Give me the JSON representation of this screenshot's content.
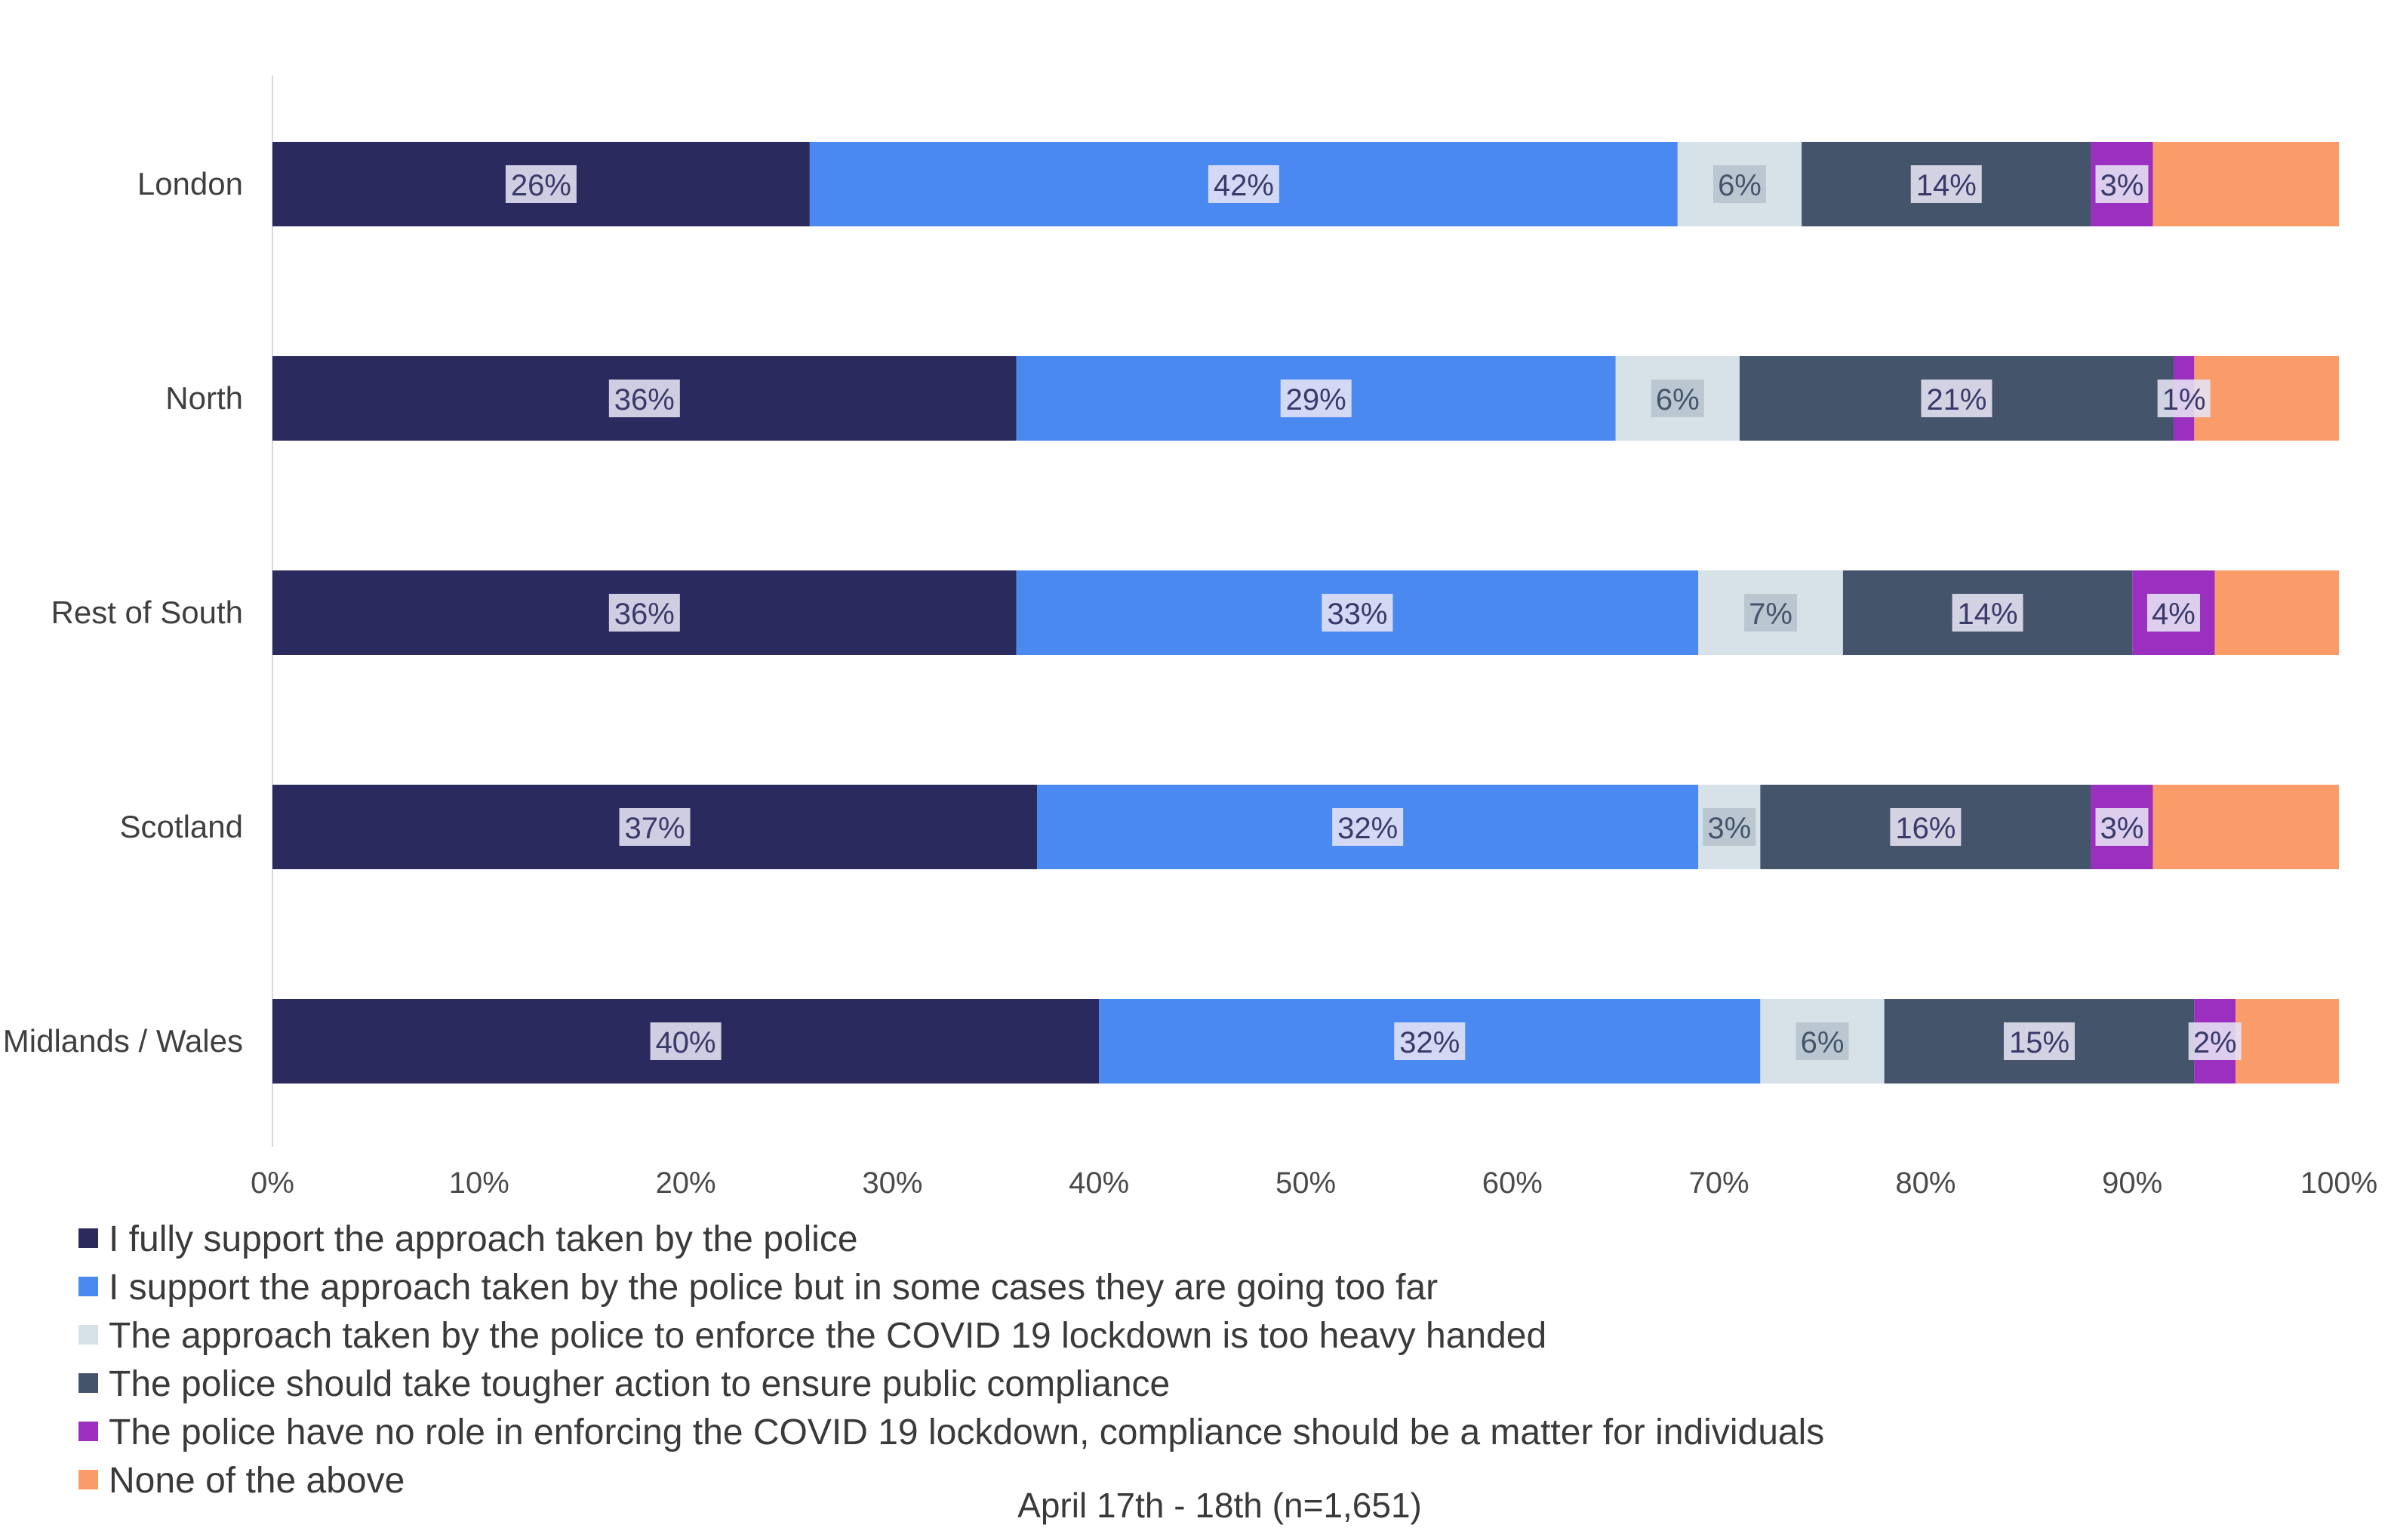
{
  "chart_data": {
    "type": "bar",
    "orientation": "horizontal",
    "stacked": true,
    "categories": [
      "London",
      "North",
      "Rest of South",
      "Scotland",
      "Midlands / Wales"
    ],
    "series": [
      {
        "name": "I fully support the approach taken by the police",
        "color": "#2b2a5e",
        "values": [
          26,
          36,
          36,
          37,
          40
        ],
        "labels": [
          "26%",
          "36%",
          "36%",
          "37%",
          "40%"
        ]
      },
      {
        "name": "I support the approach taken by the police but in some cases they are going too far",
        "color": "#4a8af0",
        "values": [
          42,
          29,
          33,
          32,
          32
        ],
        "labels": [
          "42%",
          "29%",
          "33%",
          "32%",
          "32%"
        ]
      },
      {
        "name": "The approach taken by the police to enforce the COVID 19 lockdown is too heavy handed",
        "color": "#d6e1e8",
        "values": [
          6,
          6,
          7,
          3,
          6
        ],
        "labels": [
          "6%",
          "6%",
          "7%",
          "3%",
          "6%"
        ]
      },
      {
        "name": "The police should take tougher action to ensure public compliance",
        "color": "#44546a",
        "values": [
          14,
          21,
          14,
          16,
          15
        ],
        "labels": [
          "14%",
          "21%",
          "14%",
          "16%",
          "15%"
        ]
      },
      {
        "name": "The police have no role in enforcing the COVID 19 lockdown, compliance should be a matter for individuals",
        "color": "#9b30c0",
        "values": [
          3,
          1,
          4,
          3,
          2
        ],
        "labels": [
          "3%",
          "1%",
          "4%",
          "3%",
          "2%"
        ]
      },
      {
        "name": "None of the above",
        "color": "#f99c6a",
        "values": [
          9,
          7,
          6,
          9,
          5
        ],
        "labels": [
          "",
          "",
          "",
          "",
          ""
        ]
      }
    ],
    "xlim": [
      0,
      100
    ],
    "x_ticks": [
      "0%",
      "10%",
      "20%",
      "30%",
      "40%",
      "50%",
      "60%",
      "70%",
      "80%",
      "90%",
      "100%"
    ],
    "legend_position": "bottom-left",
    "note": "April 17th - 18th (n=1,651)",
    "grid": false
  }
}
